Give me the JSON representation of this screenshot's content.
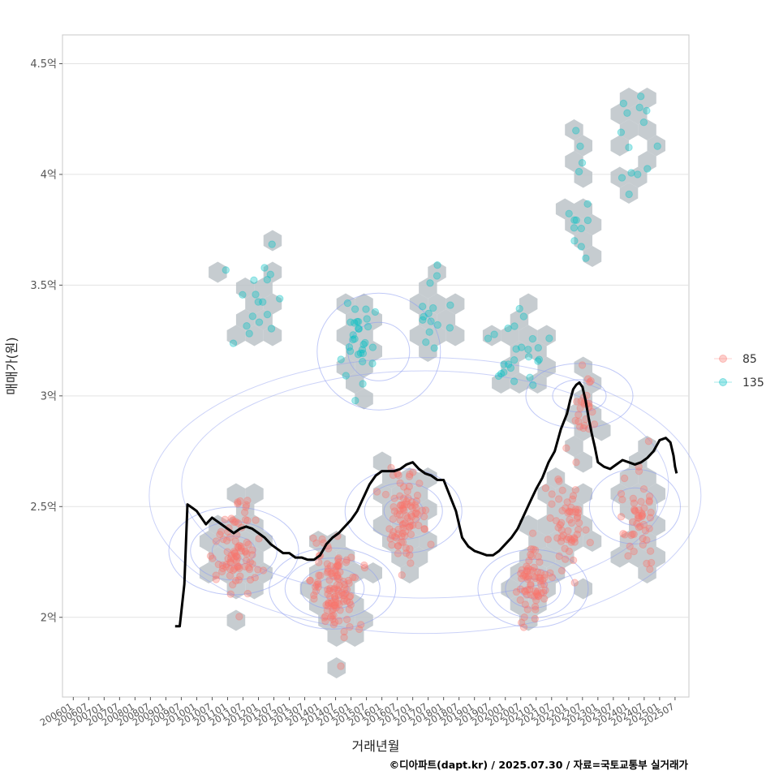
{
  "chart_data": {
    "type": "scatter",
    "title": "",
    "xlabel": "거래년월",
    "ylabel": "매매가(원)",
    "caption": "©디아파트(dapt.kr) / 2025.07.30 / 자료=국토교통부 실거래가",
    "x_tick_labels": [
      "200601",
      "200607",
      "200701",
      "200707",
      "200801",
      "200807",
      "200901",
      "200907",
      "201001",
      "201007",
      "201101",
      "201107",
      "201201",
      "201207",
      "201301",
      "201307",
      "201401",
      "201407",
      "201501",
      "201507",
      "201601",
      "201607",
      "201701",
      "201707",
      "201801",
      "201807",
      "201901",
      "201907",
      "202001",
      "202007",
      "202101",
      "202107",
      "202201",
      "202207",
      "202301",
      "202307",
      "202401",
      "202407",
      "202501",
      "202507"
    ],
    "y_ticks": [
      {
        "value": 2.0,
        "label": "2억"
      },
      {
        "value": 2.5,
        "label": "2.5억"
      },
      {
        "value": 3.0,
        "label": "3억"
      },
      {
        "value": 3.5,
        "label": "3.5억"
      },
      {
        "value": 4.0,
        "label": "4억"
      },
      {
        "value": 4.5,
        "label": "4.5억"
      }
    ],
    "ylim": [
      1.64,
      4.63
    ],
    "xlim": [
      2005.65,
      2025.95
    ],
    "grid": true,
    "legend_position": "right",
    "legend": [
      {
        "label": "85",
        "color": "#F8766D"
      },
      {
        "label": "135",
        "color": "#00BFC4"
      }
    ],
    "hexbin_color": "#bcc3c8",
    "contour_color": "#8c9cf0",
    "trend_line": {
      "name": "moving average",
      "color": "#000000",
      "x": [
        2009.3,
        2009.45,
        2009.6,
        2009.7,
        2009.9,
        2010.0,
        2010.2,
        2010.3,
        2010.5,
        2010.6,
        2010.8,
        2011.0,
        2011.2,
        2011.4,
        2011.6,
        2011.8,
        2012.0,
        2012.2,
        2012.4,
        2012.6,
        2012.8,
        2013.0,
        2013.2,
        2013.4,
        2013.6,
        2013.8,
        2014.0,
        2014.2,
        2014.4,
        2014.6,
        2014.8,
        2015.0,
        2015.2,
        2015.4,
        2015.6,
        2015.8,
        2016.0,
        2016.2,
        2016.4,
        2016.6,
        2016.8,
        2017.0,
        2017.2,
        2017.4,
        2017.6,
        2017.8,
        2018.0,
        2018.2,
        2018.4,
        2018.6,
        2018.8,
        2019.0,
        2019.2,
        2019.4,
        2019.6,
        2019.8,
        2020.0,
        2020.2,
        2020.4,
        2020.6,
        2020.8,
        2021.0,
        2021.2,
        2021.4,
        2021.6,
        2021.8,
        2022.0,
        2022.1,
        2022.2,
        2022.3,
        2022.4,
        2022.5,
        2022.6,
        2022.7,
        2022.8,
        2022.9,
        2023.0,
        2023.2,
        2023.4,
        2023.6,
        2023.8,
        2024.0,
        2024.2,
        2024.4,
        2024.6,
        2024.8,
        2025.0,
        2025.2,
        2025.35,
        2025.45,
        2025.5,
        2025.55
      ],
      "y": [
        1.96,
        1.96,
        2.15,
        2.51,
        2.49,
        2.48,
        2.44,
        2.42,
        2.45,
        2.44,
        2.42,
        2.4,
        2.38,
        2.4,
        2.41,
        2.4,
        2.38,
        2.36,
        2.33,
        2.31,
        2.29,
        2.29,
        2.27,
        2.27,
        2.26,
        2.26,
        2.28,
        2.33,
        2.36,
        2.38,
        2.41,
        2.44,
        2.48,
        2.54,
        2.6,
        2.64,
        2.66,
        2.66,
        2.66,
        2.67,
        2.69,
        2.7,
        2.67,
        2.65,
        2.64,
        2.62,
        2.62,
        2.55,
        2.48,
        2.36,
        2.32,
        2.3,
        2.29,
        2.28,
        2.28,
        2.3,
        2.33,
        2.36,
        2.4,
        2.46,
        2.52,
        2.58,
        2.63,
        2.7,
        2.75,
        2.85,
        2.92,
        2.98,
        3.03,
        3.05,
        3.06,
        3.04,
        2.98,
        2.9,
        2.83,
        2.77,
        2.7,
        2.68,
        2.67,
        2.69,
        2.71,
        2.7,
        2.69,
        2.7,
        2.72,
        2.75,
        2.8,
        2.81,
        2.79,
        2.73,
        2.68,
        2.65
      ]
    }
  }
}
